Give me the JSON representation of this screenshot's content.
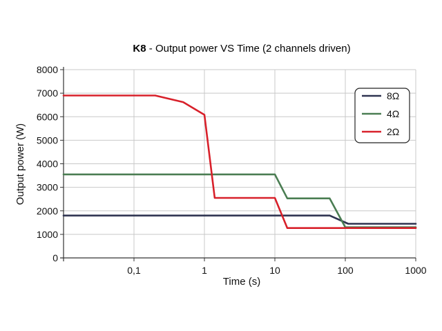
{
  "chart_data": {
    "type": "line",
    "title": {
      "bold": "K8",
      "rest": " - Output power VS Time (2 channels driven)"
    },
    "xlabel": "Time (s)",
    "ylabel": "Output power (W)",
    "xscale": "log",
    "xlim": [
      0.01,
      1000
    ],
    "ylim": [
      0,
      8000
    ],
    "xticks": [
      {
        "value": 0.1,
        "label": "0,1"
      },
      {
        "value": 1,
        "label": "1"
      },
      {
        "value": 10,
        "label": "10"
      },
      {
        "value": 100,
        "label": "100"
      },
      {
        "value": 1000,
        "label": "1000"
      }
    ],
    "yticks": [
      {
        "value": 0,
        "label": "0"
      },
      {
        "value": 1000,
        "label": "1000"
      },
      {
        "value": 2000,
        "label": "2000"
      },
      {
        "value": 3000,
        "label": "3000"
      },
      {
        "value": 4000,
        "label": "4000"
      },
      {
        "value": 5000,
        "label": "5000"
      },
      {
        "value": 6000,
        "label": "6000"
      },
      {
        "value": 7000,
        "label": "7000"
      },
      {
        "value": 8000,
        "label": "8000"
      }
    ],
    "grid": true,
    "legend_position": "top-right",
    "series": [
      {
        "name": "8Ω",
        "color": "#2e3350",
        "points": [
          [
            0.01,
            1800
          ],
          [
            60,
            1800
          ],
          [
            110,
            1450
          ],
          [
            1000,
            1450
          ]
        ]
      },
      {
        "name": "4Ω",
        "color": "#4a7d52",
        "points": [
          [
            0.01,
            3550
          ],
          [
            10,
            3550
          ],
          [
            15,
            2530
          ],
          [
            60,
            2530
          ],
          [
            100,
            1300
          ],
          [
            1000,
            1300
          ]
        ]
      },
      {
        "name": "2Ω",
        "color": "#d8202a",
        "points": [
          [
            0.01,
            6900
          ],
          [
            0.2,
            6900
          ],
          [
            0.5,
            6620
          ],
          [
            1,
            6080
          ],
          [
            1.4,
            2550
          ],
          [
            10,
            2550
          ],
          [
            15,
            1270
          ],
          [
            1000,
            1270
          ]
        ]
      }
    ]
  }
}
